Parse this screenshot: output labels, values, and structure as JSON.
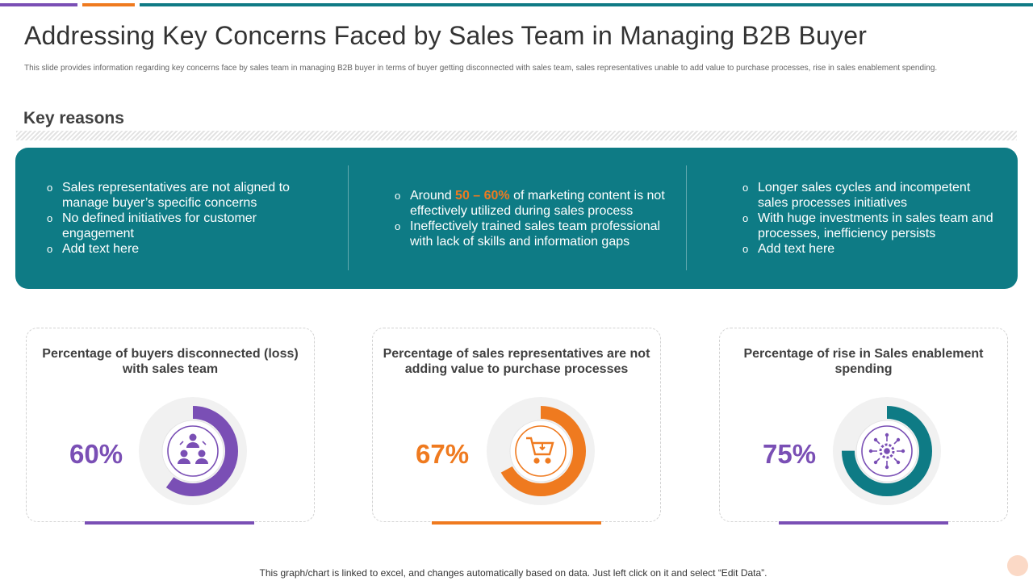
{
  "title": "Addressing Key Concerns Faced by Sales Team in Managing B2B Buyer",
  "subtitle": "This slide provides information regarding key concerns face by sales team in managing B2B buyer in terms of buyer getting disconnected with sales team, sales representatives unable to add value to purchase processes, rise in sales enablement spending.",
  "section_title": "Key reasons",
  "reasons": {
    "col1": [
      "Sales representatives are not aligned to manage buyer’s specific concerns",
      "No defined initiatives for customer engagement",
      "Add text here"
    ],
    "col2": {
      "item1_prefix": "Around ",
      "item1_highlight": "50 – 60%",
      "item1_suffix": " of marketing content is not effectively utilized during sales process",
      "item2": "Ineffectively  trained sales team professional with lack of skills and information gaps"
    },
    "col3": [
      "Longer sales cycles and incompetent sales processes initiatives",
      "With huge investments  in sales team and processes, inefficiency persists",
      "Add text here"
    ]
  },
  "cards": [
    {
      "title": "Percentage of buyers disconnected (loss) with sales team",
      "percent_label": "60%",
      "value": 60,
      "color": "#7a4fb5",
      "icon": "people-network-icon"
    },
    {
      "title": "Percentage of sales representatives  are not adding value to purchase processes",
      "percent_label": "67%",
      "value": 67,
      "color": "#ef7a1f",
      "icon": "shopping-cart-icon"
    },
    {
      "title": "Percentage of rise in Sales enablement spending",
      "percent_label": "75%",
      "value": 75,
      "color": "#0e7b85",
      "icon": "gear-network-icon"
    }
  ],
  "footer": "This graph/chart is linked to excel, and changes automatically based on data. Just left click on it and select “Edit Data”.",
  "colors": {
    "purple": "#7a4fb5",
    "orange": "#ef7a1f",
    "teal": "#0e7b85"
  }
}
